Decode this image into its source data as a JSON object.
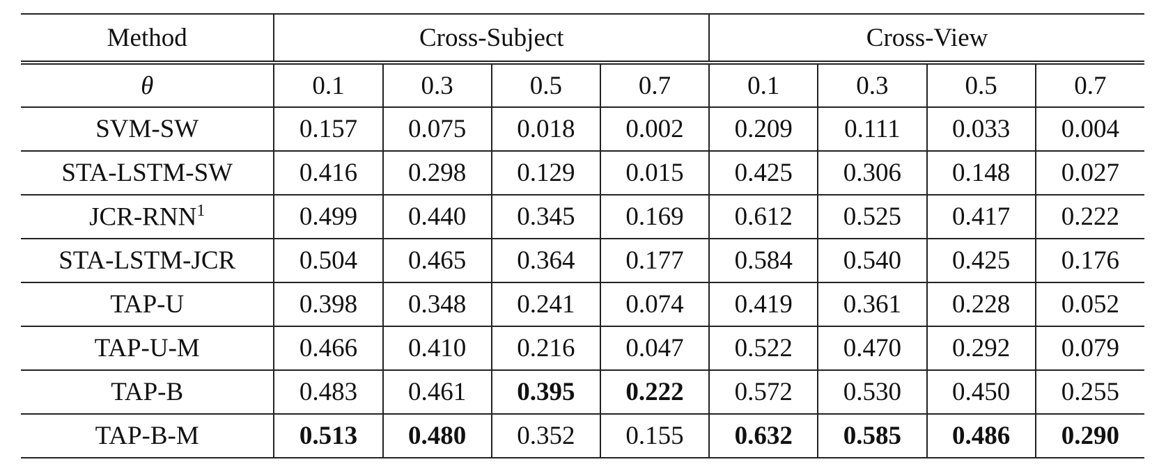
{
  "table": {
    "header": {
      "method": "Method",
      "groups": [
        "Cross-Subject",
        "Cross-View"
      ]
    },
    "theta": {
      "label": "θ",
      "values": [
        "0.1",
        "0.3",
        "0.5",
        "0.7",
        "0.1",
        "0.3",
        "0.5",
        "0.7"
      ]
    },
    "rows": [
      {
        "method": "SVM-SW",
        "values": [
          "0.157",
          "0.075",
          "0.018",
          "0.002",
          "0.209",
          "0.111",
          "0.033",
          "0.004"
        ],
        "bold": []
      },
      {
        "method": "STA-LSTM-SW",
        "values": [
          "0.416",
          "0.298",
          "0.129",
          "0.015",
          "0.425",
          "0.306",
          "0.148",
          "0.027"
        ],
        "bold": []
      },
      {
        "method": "JCR-RNN",
        "footnote": "1",
        "values": [
          "0.499",
          "0.440",
          "0.345",
          "0.169",
          "0.612",
          "0.525",
          "0.417",
          "0.222"
        ],
        "bold": []
      },
      {
        "method": "STA-LSTM-JCR",
        "values": [
          "0.504",
          "0.465",
          "0.364",
          "0.177",
          "0.584",
          "0.540",
          "0.425",
          "0.176"
        ],
        "bold": []
      },
      {
        "method": "TAP-U",
        "values": [
          "0.398",
          "0.348",
          "0.241",
          "0.074",
          "0.419",
          "0.361",
          "0.228",
          "0.052"
        ],
        "bold": []
      },
      {
        "method": "TAP-U-M",
        "values": [
          "0.466",
          "0.410",
          "0.216",
          "0.047",
          "0.522",
          "0.470",
          "0.292",
          "0.079"
        ],
        "bold": []
      },
      {
        "method": "TAP-B",
        "values": [
          "0.483",
          "0.461",
          "0.395",
          "0.222",
          "0.572",
          "0.530",
          "0.450",
          "0.255"
        ],
        "bold": [
          2,
          3
        ]
      },
      {
        "method": "TAP-B-M",
        "values": [
          "0.513",
          "0.480",
          "0.352",
          "0.155",
          "0.632",
          "0.585",
          "0.486",
          "0.290"
        ],
        "bold": [
          0,
          1,
          4,
          5,
          6,
          7
        ]
      }
    ]
  }
}
